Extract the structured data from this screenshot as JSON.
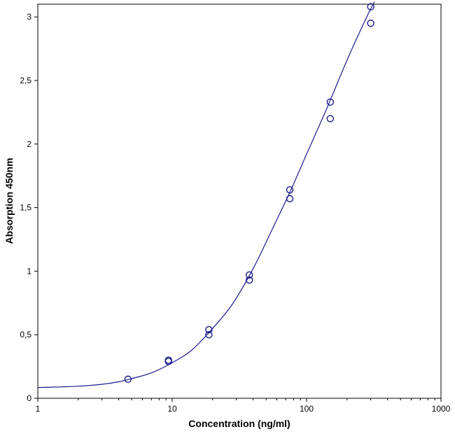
{
  "chart_data": {
    "type": "scatter",
    "title": "",
    "xlabel": "Concentration (ng/ml)",
    "ylabel": "Absorption 450nm",
    "x_scale": "log",
    "xlim": [
      1,
      1000
    ],
    "ylim": [
      0,
      3.1
    ],
    "x_ticks": [
      1,
      10,
      100,
      1000
    ],
    "x_tick_labels": [
      "1",
      "10",
      "100",
      "1000"
    ],
    "y_ticks": [
      0,
      0.5,
      1,
      1.5,
      2,
      2.5,
      3
    ],
    "y_tick_labels": [
      "0",
      "0,5",
      "1",
      "1,5",
      "2",
      "2,5",
      "3"
    ],
    "grid": false,
    "legend": "none",
    "colors": {
      "marker": "#1a1a8c",
      "curve": "#1a1a8c",
      "frame": "#000000"
    },
    "series": [
      {
        "type": "scatter",
        "x": [
          4.69,
          9.38,
          9.38,
          18.75,
          18.75,
          37.5,
          37.5,
          75,
          75,
          150,
          150,
          300,
          300
        ],
        "y": [
          0.15,
          0.29,
          0.3,
          0.5,
          0.54,
          0.93,
          0.97,
          1.57,
          1.64,
          2.2,
          2.33,
          2.95,
          3.08
        ]
      },
      {
        "type": "line",
        "x": [
          1,
          1.5,
          2,
          3,
          4,
          5,
          7,
          10,
          14,
          20,
          28,
          40,
          55,
          75,
          100,
          140,
          200,
          280,
          320
        ],
        "y": [
          0.085,
          0.09,
          0.095,
          0.11,
          0.13,
          0.155,
          0.2,
          0.28,
          0.38,
          0.55,
          0.74,
          1.02,
          1.32,
          1.62,
          1.92,
          2.27,
          2.66,
          3.0,
          3.12
        ]
      }
    ]
  }
}
